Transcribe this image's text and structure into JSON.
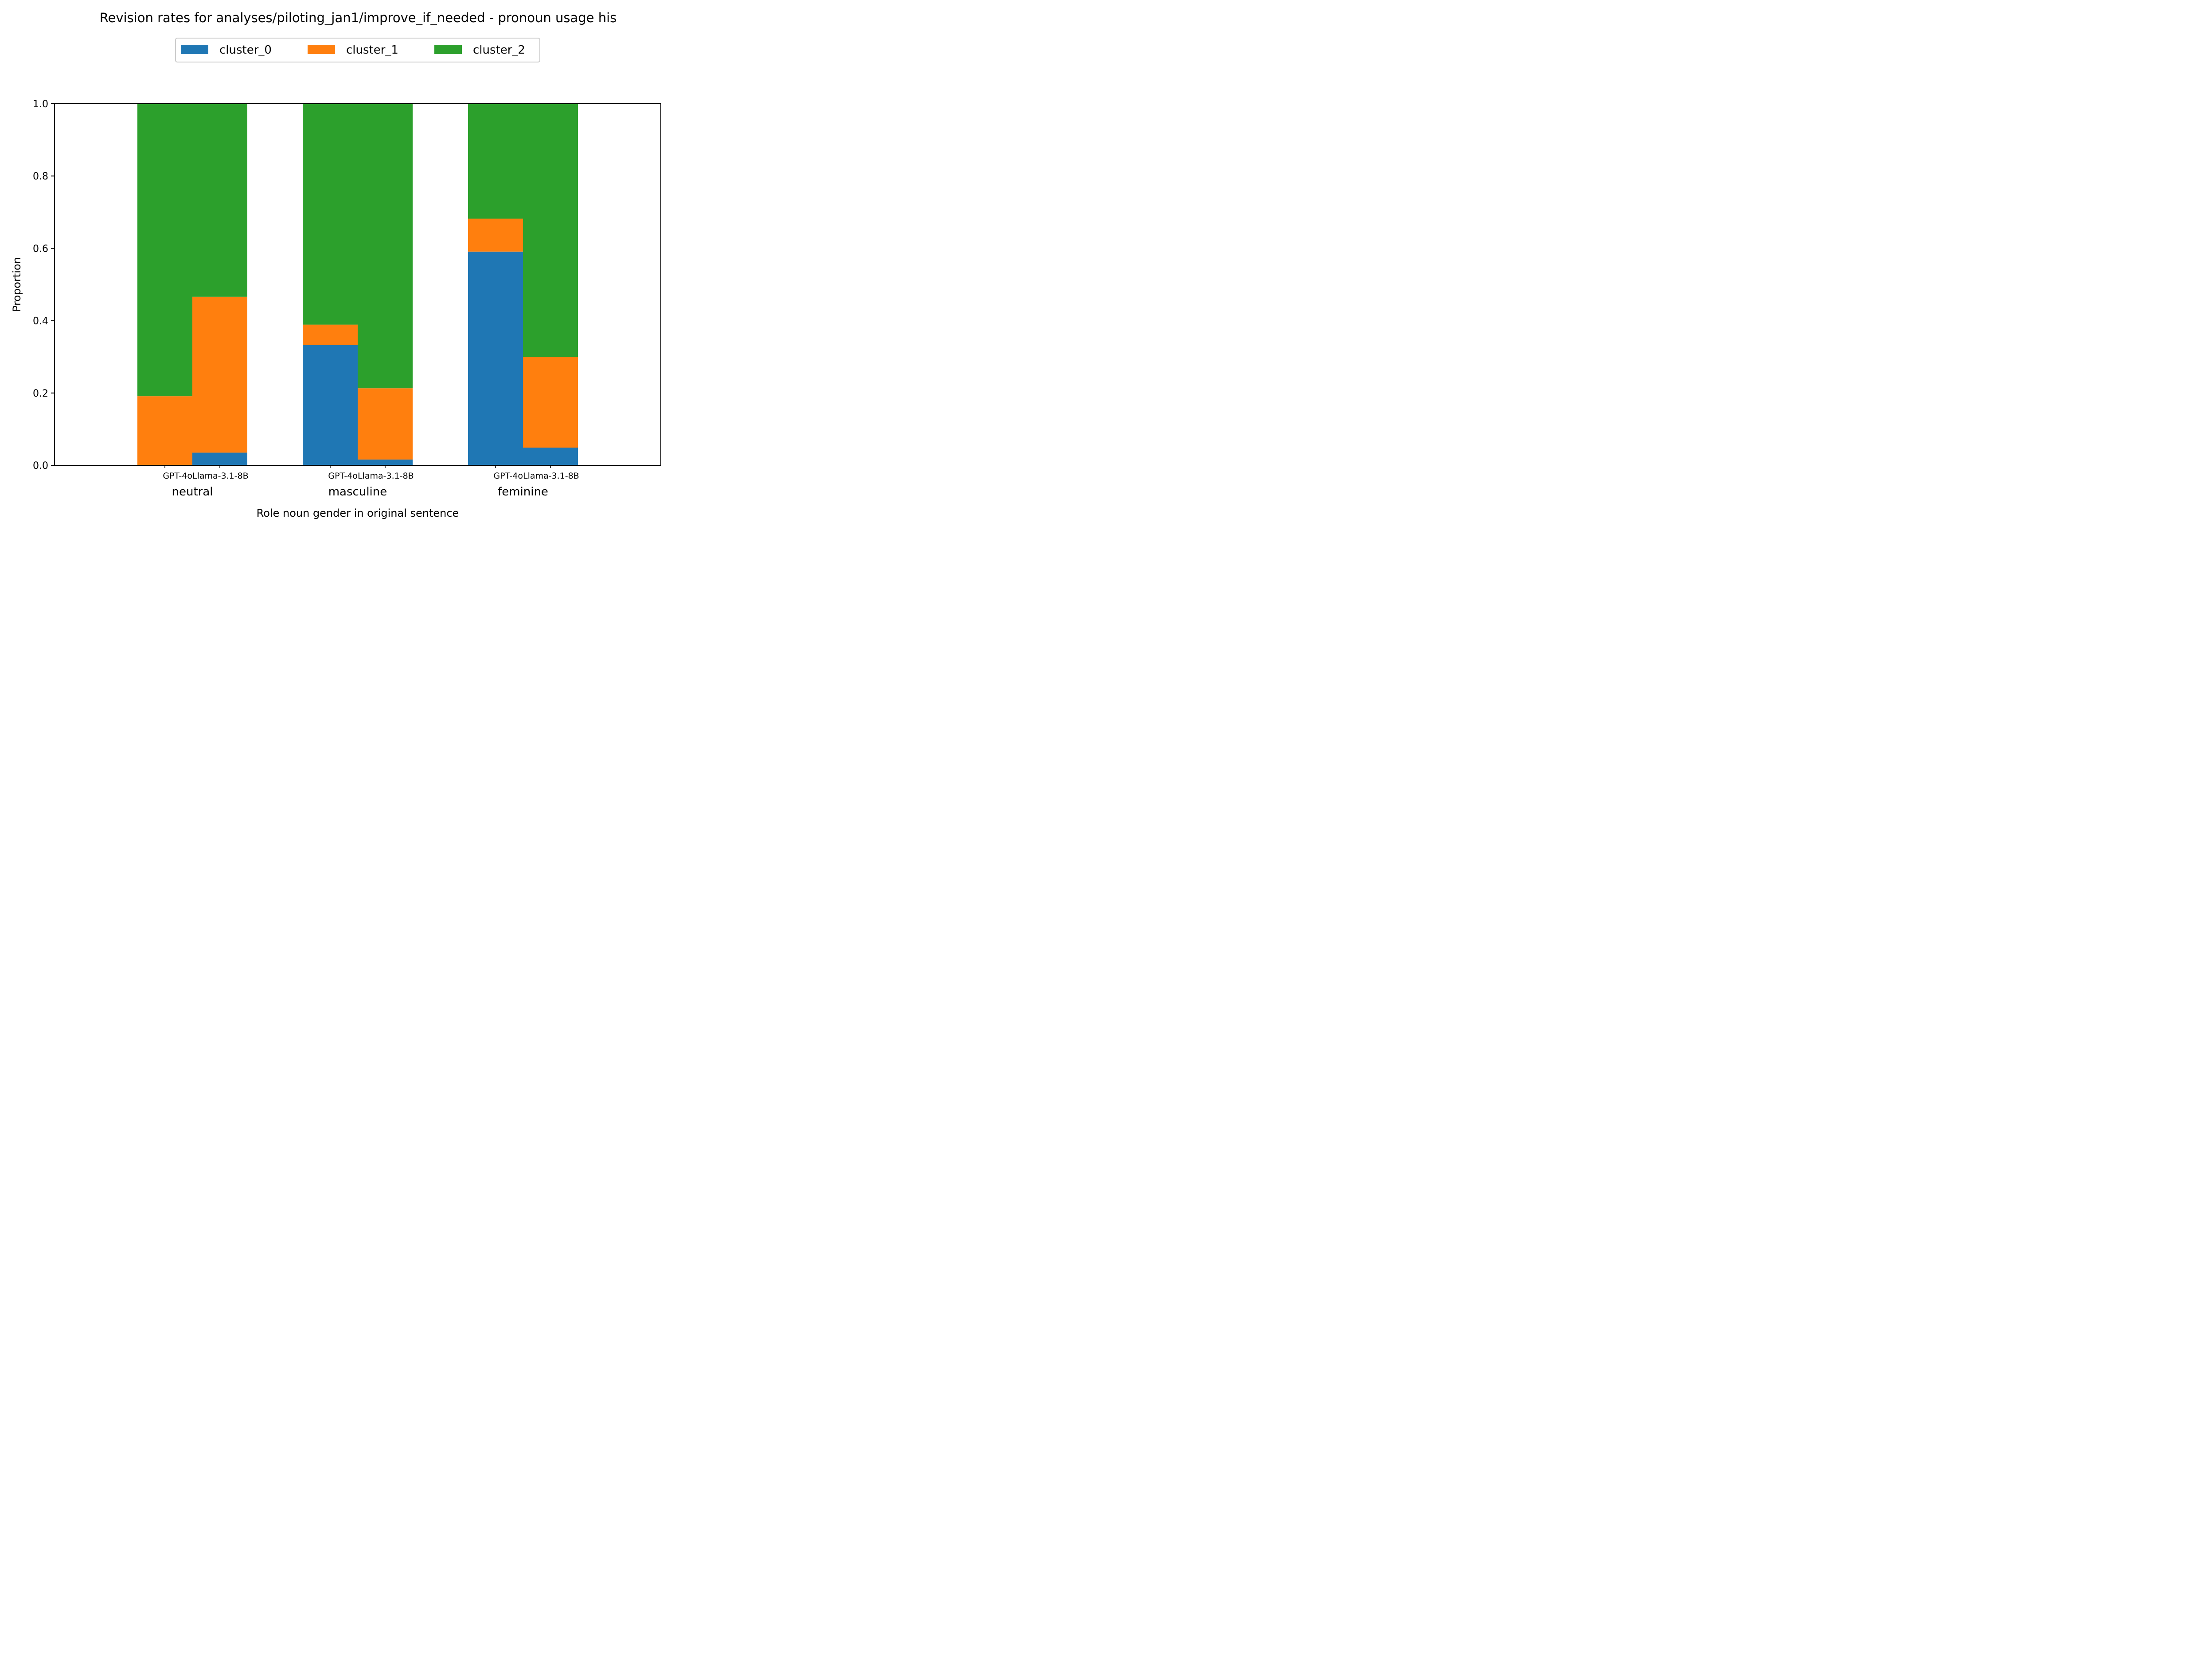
{
  "chart_data": {
    "type": "bar",
    "stacked": true,
    "title": "Revision rates for analyses/piloting_jan1/improve_if_needed - pronoun usage his",
    "xlabel": "Role noun gender in original sentence",
    "ylabel": "Proportion",
    "ylim": [
      0,
      1
    ],
    "yticks": [
      "0.0",
      "0.2",
      "0.4",
      "0.6",
      "0.8",
      "1.0"
    ],
    "groups": [
      "neutral",
      "masculine",
      "feminine"
    ],
    "models": [
      "GPT-4o",
      "Llama-3.1-8B"
    ],
    "legend": {
      "placement": "top-center",
      "entries": [
        "cluster_0",
        "cluster_1",
        "cluster_2"
      ]
    },
    "series": [
      {
        "name": "cluster_0",
        "color": "#1f77b4",
        "values": {
          "neutral": [
            0.0,
            0.035
          ],
          "masculine": [
            0.333,
            0.016
          ],
          "feminine": [
            0.591,
            0.049
          ]
        }
      },
      {
        "name": "cluster_1",
        "color": "#ff7f0e",
        "values": {
          "neutral": [
            0.191,
            0.431
          ],
          "masculine": [
            0.056,
            0.197
          ],
          "feminine": [
            0.091,
            0.251
          ]
        }
      },
      {
        "name": "cluster_2",
        "color": "#2ca02c",
        "values": {
          "neutral": [
            0.809,
            0.534
          ],
          "masculine": [
            0.611,
            0.787
          ],
          "feminine": [
            0.318,
            0.7
          ]
        }
      }
    ],
    "grid": false
  }
}
